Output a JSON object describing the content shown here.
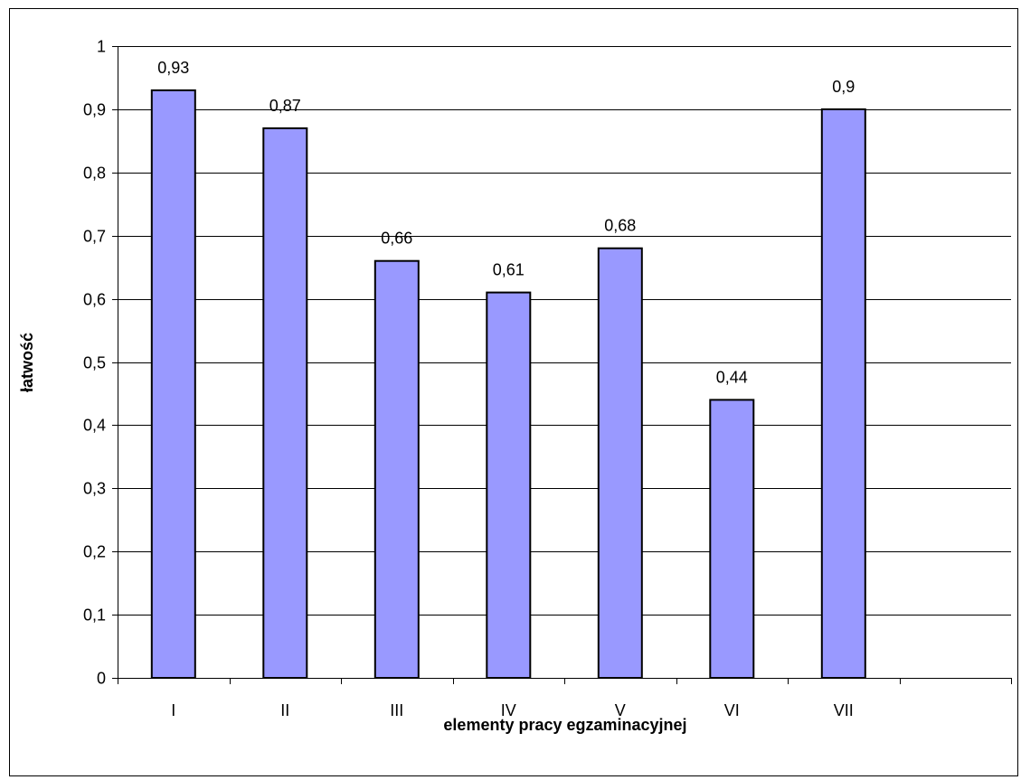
{
  "chart_data": {
    "type": "bar",
    "title": "",
    "xlabel": "elementy pracy egzaminacyjnej",
    "ylabel": "łatwość",
    "categories": [
      "I",
      "II",
      "III",
      "IV",
      "V",
      "VI",
      "VII",
      ""
    ],
    "values": [
      0.93,
      0.87,
      0.66,
      0.61,
      0.68,
      0.44,
      0.9,
      null
    ],
    "data_labels": [
      "0,93",
      "0,87",
      "0,66",
      "0,61",
      "0,68",
      "0,44",
      "0,9",
      ""
    ],
    "ylim": [
      0,
      1
    ],
    "yticks": [
      0,
      0.1,
      0.2,
      0.3,
      0.4,
      0.5,
      0.6,
      0.7,
      0.8,
      0.9,
      1
    ],
    "ytick_labels": [
      "0",
      "0,1",
      "0,2",
      "0,3",
      "0,4",
      "0,5",
      "0,6",
      "0,7",
      "0,8",
      "0,9",
      "1"
    ],
    "grid": true,
    "legend": "none",
    "colors": {
      "bar_fill": "#9999ff",
      "bar_stroke": "#000000",
      "grid": "#000000"
    }
  }
}
